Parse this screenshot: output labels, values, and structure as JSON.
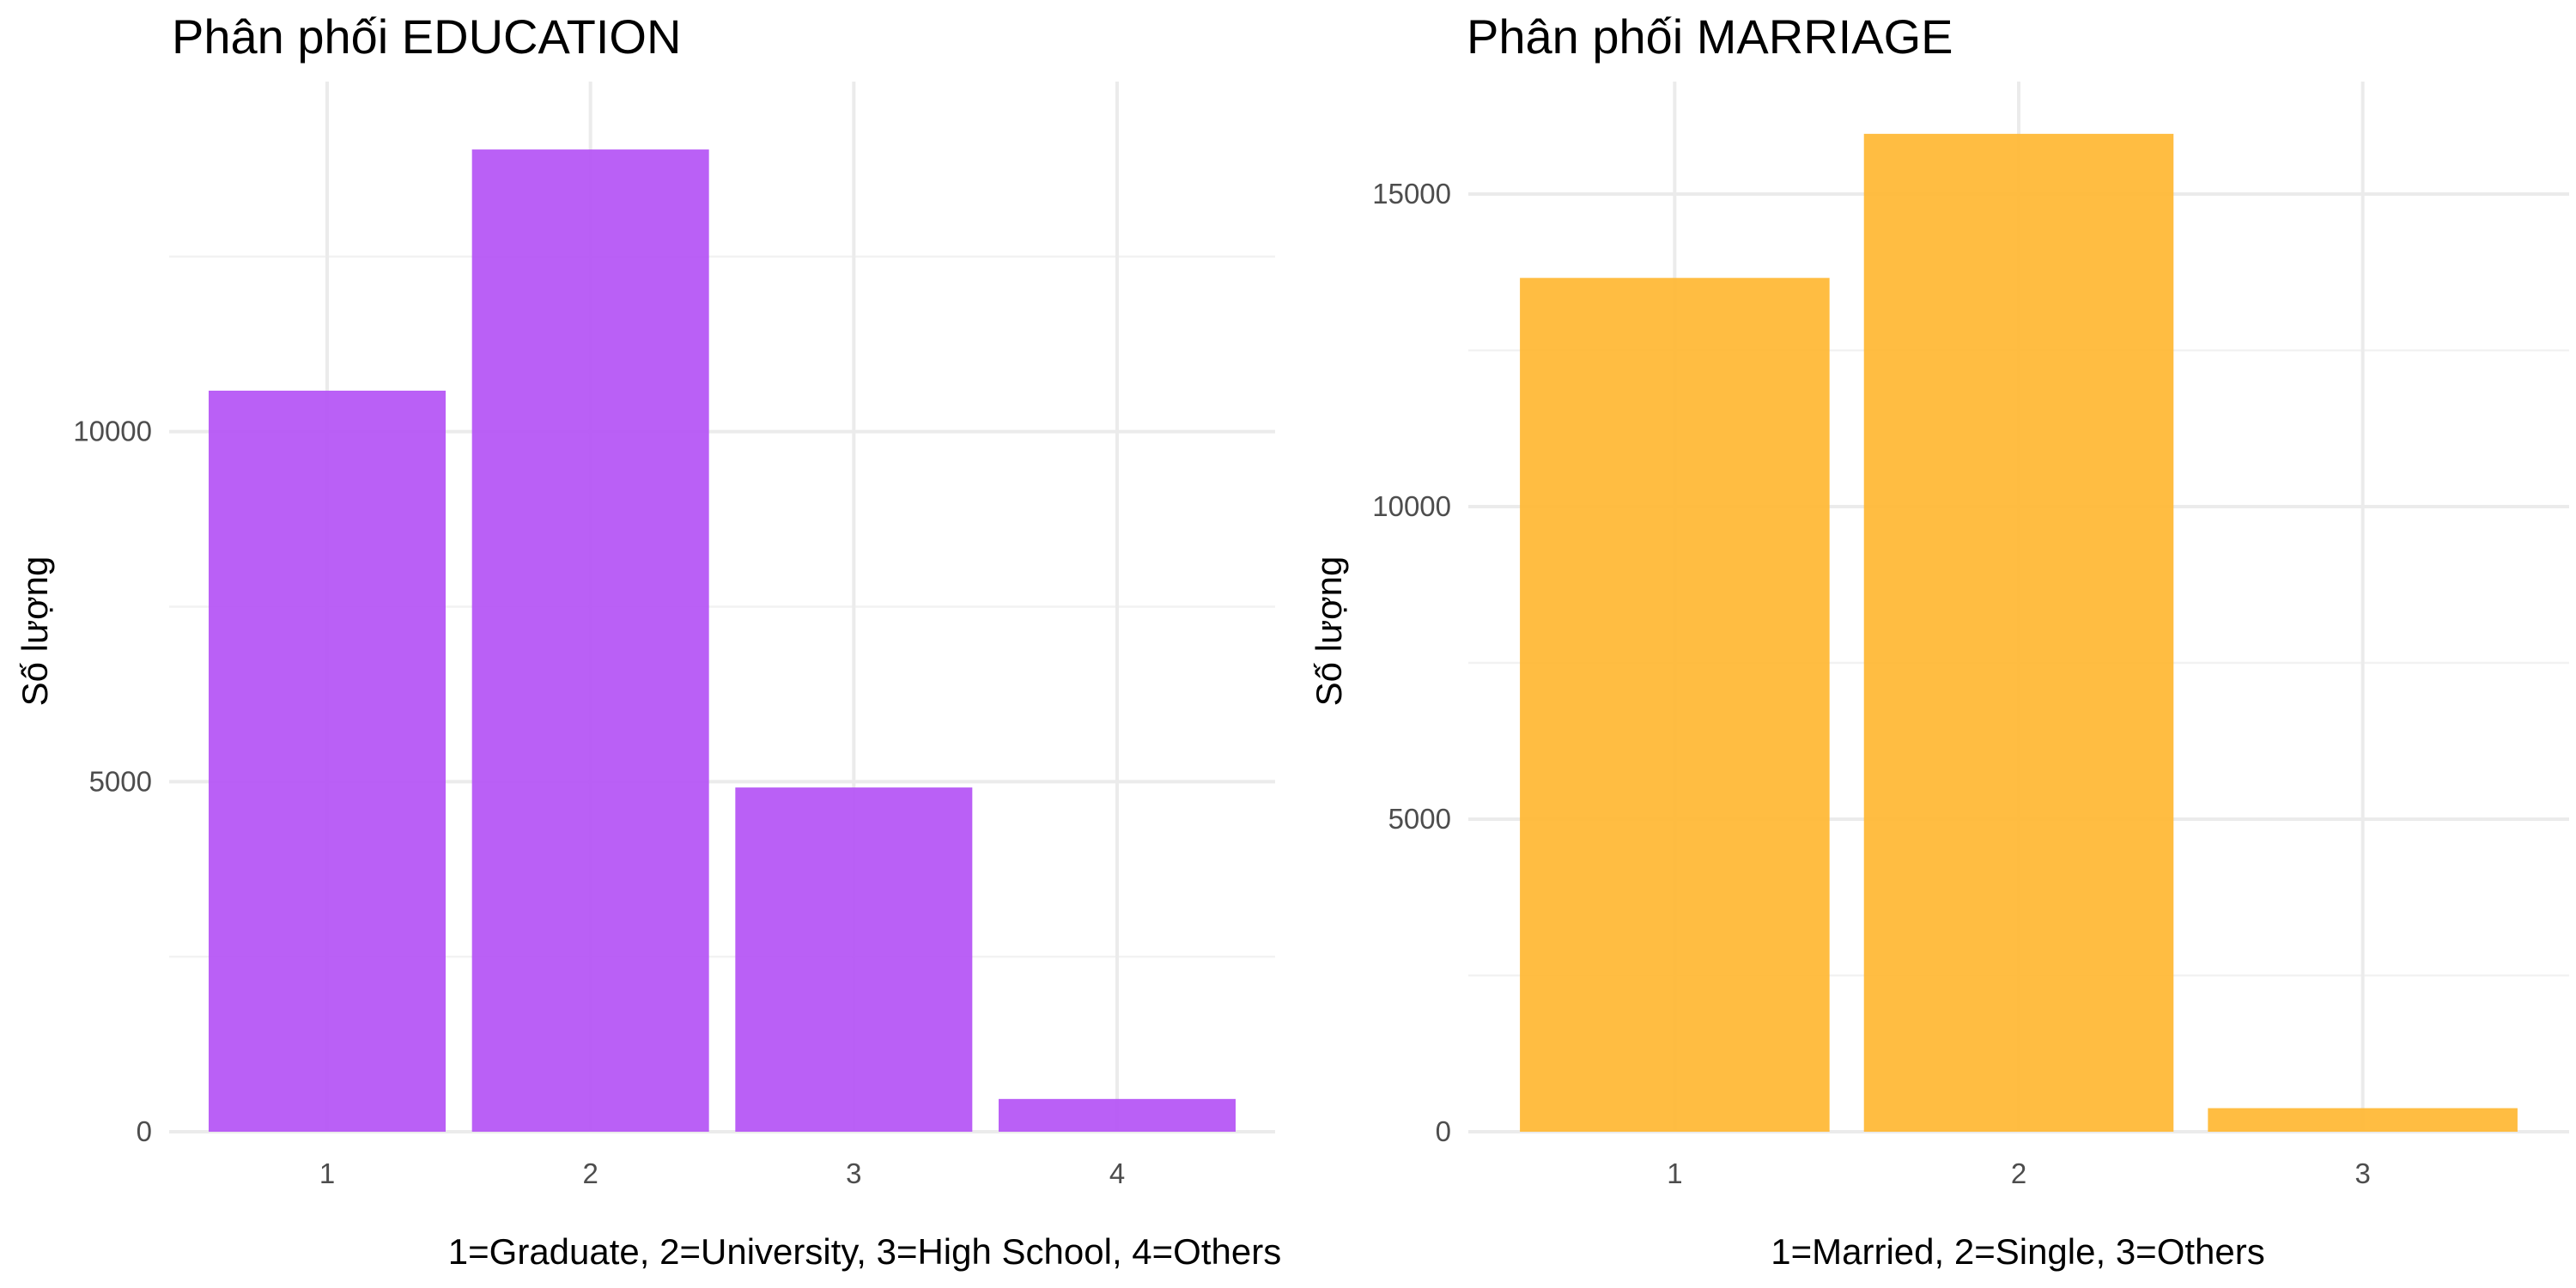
{
  "chart_data": [
    {
      "type": "bar",
      "title": "Phân phối EDUCATION",
      "xlabel": "1=Graduate, 2=University, 3=High School, 4=Others",
      "ylabel": "Số lượng",
      "categories": [
        "1",
        "2",
        "3",
        "4"
      ],
      "values": [
        10585,
        14030,
        4917,
        468
      ],
      "ylim": [
        0,
        15000
      ],
      "yticks": [
        0,
        5000,
        10000
      ],
      "ytick_labels": [
        "0",
        "5000",
        "10000"
      ],
      "color": "#b452f5",
      "grid": true,
      "legend": "none"
    },
    {
      "type": "bar",
      "title": "Phân phối MARRIAGE",
      "xlabel": "1=Married, 2=Single, 3=Others",
      "ylabel": "Số lượng",
      "categories": [
        "1",
        "2",
        "3"
      ],
      "values": [
        13659,
        15964,
        377
      ],
      "ylim": [
        0,
        16800
      ],
      "yticks": [
        0,
        5000,
        10000,
        15000
      ],
      "ytick_labels": [
        "0",
        "5000",
        "10000",
        "15000"
      ],
      "color": "#ffb732",
      "grid": true,
      "legend": "none"
    }
  ]
}
